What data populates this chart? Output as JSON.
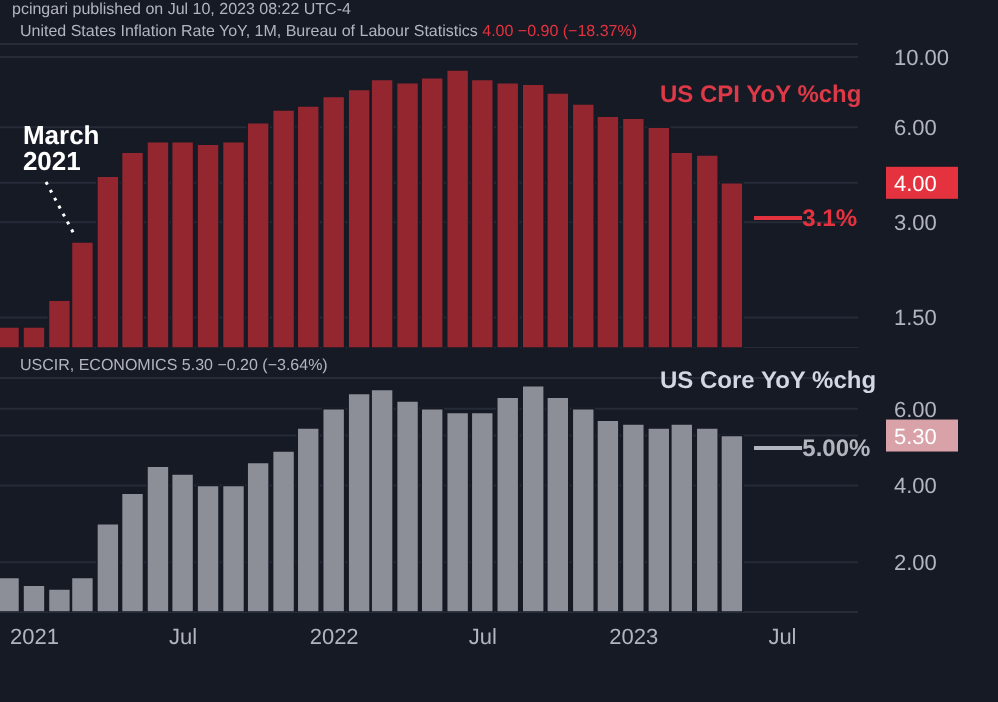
{
  "chart_data": [
    {
      "type": "bar",
      "title": "United States Inflation Rate YoY, 1M, Bureau of Labour Statistics",
      "subtitle": "4.00 −0.90 (−18.37%)",
      "x": [
        "2020-12",
        "2021-01",
        "2021-02",
        "2021-03",
        "2021-04",
        "2021-05",
        "2021-06",
        "2021-07",
        "2021-08",
        "2021-09",
        "2021-10",
        "2021-11",
        "2021-12",
        "2022-01",
        "2022-02",
        "2022-03",
        "2022-04",
        "2022-05",
        "2022-06",
        "2022-07",
        "2022-08",
        "2022-09",
        "2022-10",
        "2022-11",
        "2022-12",
        "2023-01",
        "2023-02",
        "2023-03",
        "2023-04",
        "2023-05"
      ],
      "series": [
        {
          "name": "US CPI YoY %chg",
          "color": "#94262f",
          "values": [
            1.4,
            1.4,
            1.7,
            2.6,
            4.2,
            5.0,
            5.4,
            5.4,
            5.3,
            5.4,
            6.2,
            6.8,
            7.0,
            7.5,
            7.9,
            8.5,
            8.3,
            8.6,
            9.1,
            8.5,
            8.3,
            8.2,
            7.7,
            7.1,
            6.5,
            6.4,
            6.0,
            5.0,
            4.9,
            4.0
          ]
        }
      ],
      "log": "y",
      "ylim": [
        1.2,
        11
      ],
      "yticks": [
        {
          "value": 1.5,
          "label": "1.50"
        },
        {
          "value": 3,
          "label": "3.00"
        },
        {
          "value": 4,
          "label": "4.00"
        },
        {
          "value": 6,
          "label": "6.00"
        },
        {
          "value": 10,
          "label": "10.00"
        }
      ],
      "xlim": [
        "2020-11-20",
        "2023-10-01"
      ],
      "tick_labels": "y",
      "grid": "y",
      "ref_lines": [
        {
          "axis": "y",
          "value": 3.1,
          "label": "3.1%",
          "color": "#e5323f"
        }
      ],
      "annotations": [
        "pcingari published on Jul 10, 2023 08:22 UTC-4",
        {
          "text": "March 2021",
          "x": "2021-03",
          "y": 2.6
        }
      ]
    },
    {
      "type": "bar",
      "title": "USCIR, ECONOMICS",
      "subtitle": "5.30 −0.20 (−3.64%)",
      "x": [
        "2020-12",
        "2021-01",
        "2021-02",
        "2021-03",
        "2021-04",
        "2021-05",
        "2021-06",
        "2021-07",
        "2021-08",
        "2021-09",
        "2021-10",
        "2021-11",
        "2021-12",
        "2022-01",
        "2022-02",
        "2022-03",
        "2022-04",
        "2022-05",
        "2022-06",
        "2022-07",
        "2022-08",
        "2022-09",
        "2022-10",
        "2022-11",
        "2022-12",
        "2023-01",
        "2023-02",
        "2023-03",
        "2023-04",
        "2023-05"
      ],
      "series": [
        {
          "name": "US Core YoY %chg",
          "color": "#8c8f97",
          "values": [
            1.6,
            1.4,
            1.3,
            1.6,
            3.0,
            3.8,
            4.5,
            4.3,
            4.0,
            4.0,
            4.6,
            4.9,
            5.5,
            6.0,
            6.4,
            6.5,
            6.2,
            6.0,
            5.9,
            5.9,
            6.3,
            6.6,
            6.3,
            6.0,
            5.7,
            5.6,
            5.5,
            5.6,
            5.5,
            5.3
          ]
        }
      ],
      "ylim": [
        0.7,
        6.8
      ],
      "yticks": [
        {
          "value": 2,
          "label": "2.00"
        },
        {
          "value": 4,
          "label": "4.00"
        },
        {
          "value": 5.3,
          "label": "5.30"
        },
        {
          "value": 6,
          "label": "6.00"
        }
      ],
      "xlim": [
        "2020-11-20",
        "2023-10-01"
      ],
      "xticks": [
        {
          "value": "2021-01",
          "label": "2021"
        },
        {
          "value": "2021-07",
          "label": "Jul"
        },
        {
          "value": "2022-01",
          "label": "2022"
        },
        {
          "value": "2022-07",
          "label": "Jul"
        },
        {
          "value": "2023-01",
          "label": "2023"
        },
        {
          "value": "2023-07",
          "label": "Jul"
        }
      ],
      "grid": "y",
      "ref_lines": [
        {
          "axis": "y",
          "value": 5.0,
          "label": "5.00%",
          "color": "#b2b5be"
        }
      ]
    }
  ]
}
